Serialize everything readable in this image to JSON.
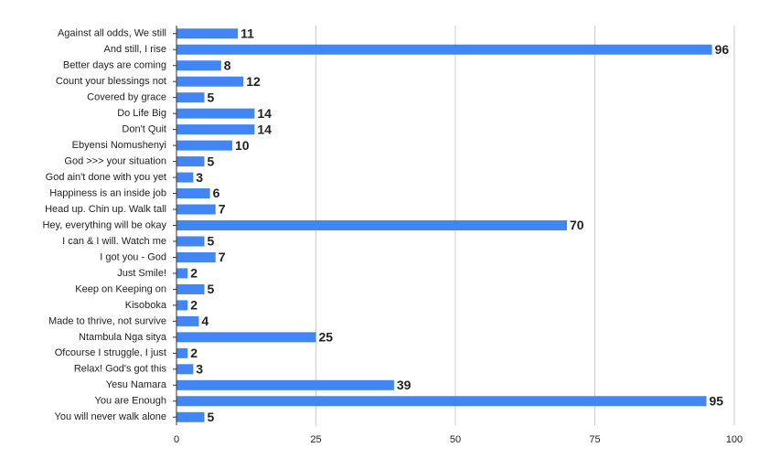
{
  "chart_data": {
    "type": "bar",
    "orientation": "horizontal",
    "categories": [
      "Against all odds, We still",
      "And still, I rise",
      "Better days are coming",
      "Count your blessings not",
      "Covered by grace",
      "Do Life Big",
      "Don't Quit",
      "Ebyensi Nomushenyi",
      "God >>> your situation",
      "God ain't done with you yet",
      "Happiness is an inside job",
      "Head up. Chin up. Walk tall",
      "Hey, everything will be okay",
      "I can & I will. Watch me",
      "I got you - God",
      "Just Smile!",
      "Keep on Keeping on",
      "Kisoboka",
      "Made to thrive, not survive",
      "Ntambula Nga sitya",
      "Ofcourse I struggle, I just",
      "Relax! God's got this",
      "Yesu Namara",
      "You are Enough",
      "You will never walk alone"
    ],
    "values": [
      11,
      96,
      8,
      12,
      5,
      14,
      14,
      10,
      5,
      3,
      6,
      7,
      70,
      5,
      7,
      2,
      5,
      2,
      4,
      25,
      2,
      3,
      39,
      95,
      5
    ],
    "color": "#4285f4",
    "xlim": [
      0,
      100
    ],
    "xticks": [
      0,
      25,
      50,
      75,
      100
    ],
    "grid": true
  }
}
